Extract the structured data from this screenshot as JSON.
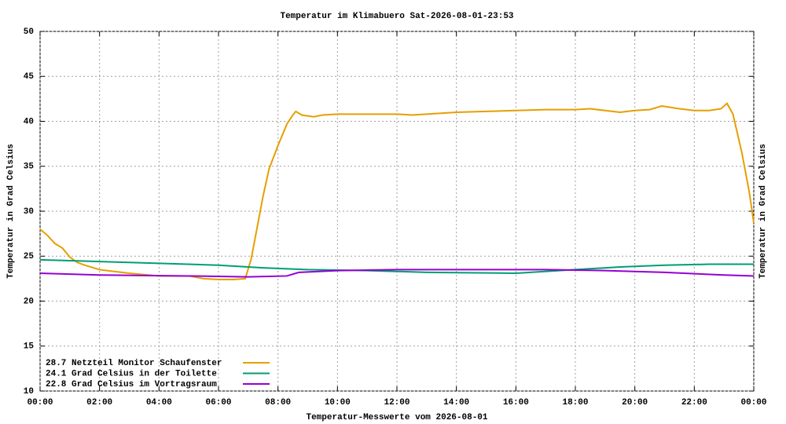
{
  "chart_data": {
    "type": "line",
    "title": "Temperatur im Klimabuero Sat-2026-08-01-23:53",
    "xlabel": "Temperatur-Messwerte vom 2026-08-01",
    "ylabel": "Temperatur in Grad Celsius",
    "y2label": "Temperatur in Grad Celsius",
    "xlim": [
      0,
      24
    ],
    "xticks": [
      {
        "value": 0,
        "label": "00:00"
      },
      {
        "value": 2,
        "label": "02:00"
      },
      {
        "value": 4,
        "label": "04:00"
      },
      {
        "value": 6,
        "label": "06:00"
      },
      {
        "value": 8,
        "label": "08:00"
      },
      {
        "value": 10,
        "label": "10:00"
      },
      {
        "value": 12,
        "label": "12:00"
      },
      {
        "value": 14,
        "label": "14:00"
      },
      {
        "value": 16,
        "label": "16:00"
      },
      {
        "value": 18,
        "label": "18:00"
      },
      {
        "value": 20,
        "label": "20:00"
      },
      {
        "value": 22,
        "label": "22:00"
      },
      {
        "value": 24,
        "label": "00:00"
      }
    ],
    "ylim": [
      10,
      50
    ],
    "yticks": [
      10,
      15,
      20,
      25,
      30,
      35,
      40,
      45,
      50
    ],
    "grid": true,
    "legend": "bottom-left",
    "series": [
      {
        "name": "28.7 Netzteil Monitor Schaufenster",
        "color": "#e69f00",
        "x": [
          0,
          0.25,
          0.5,
          0.75,
          1,
          1.25,
          1.5,
          2,
          2.5,
          3,
          4,
          5,
          5.5,
          6,
          6.5,
          6.9,
          7.1,
          7.3,
          7.5,
          7.7,
          8,
          8.3,
          8.5,
          8.6,
          8.8,
          9.2,
          9.5,
          10,
          11,
          12,
          12.5,
          13,
          14,
          15,
          16,
          17,
          18,
          18.5,
          19,
          19.5,
          20,
          20.5,
          20.9,
          21.5,
          22,
          22.5,
          22.9,
          23.1,
          23.3,
          23.6,
          23.85,
          24
        ],
        "values": [
          28.0,
          27.3,
          26.4,
          25.9,
          24.9,
          24.3,
          24.0,
          23.5,
          23.3,
          23.1,
          22.8,
          22.8,
          22.5,
          22.4,
          22.4,
          22.5,
          24.7,
          28.2,
          31.7,
          34.7,
          37.3,
          39.7,
          40.7,
          41.1,
          40.7,
          40.5,
          40.7,
          40.8,
          40.8,
          40.8,
          40.7,
          40.8,
          41.0,
          41.1,
          41.2,
          41.3,
          41.3,
          41.4,
          41.2,
          41.0,
          41.2,
          41.3,
          41.7,
          41.4,
          41.2,
          41.2,
          41.4,
          42.0,
          40.8,
          36.5,
          32.1,
          28.7
        ]
      },
      {
        "name": "24.1 Grad Celsius in der Toilette",
        "color": "#009e73",
        "x": [
          0,
          4,
          6,
          7.5,
          9,
          11,
          13,
          16,
          18,
          19.5,
          21,
          22.5,
          24
        ],
        "values": [
          24.6,
          24.2,
          24.0,
          23.7,
          23.5,
          23.4,
          23.2,
          23.1,
          23.5,
          23.8,
          24.0,
          24.1,
          24.1
        ]
      },
      {
        "name": "22.8 Grad Celsius im Vortragsraum",
        "color": "#9400d3",
        "x": [
          0,
          2,
          5,
          7,
          8.3,
          8.7,
          10,
          12,
          15,
          17,
          19,
          21,
          23,
          24
        ],
        "values": [
          23.1,
          22.9,
          22.8,
          22.7,
          22.8,
          23.2,
          23.4,
          23.5,
          23.5,
          23.5,
          23.4,
          23.2,
          22.9,
          22.8
        ]
      }
    ]
  }
}
